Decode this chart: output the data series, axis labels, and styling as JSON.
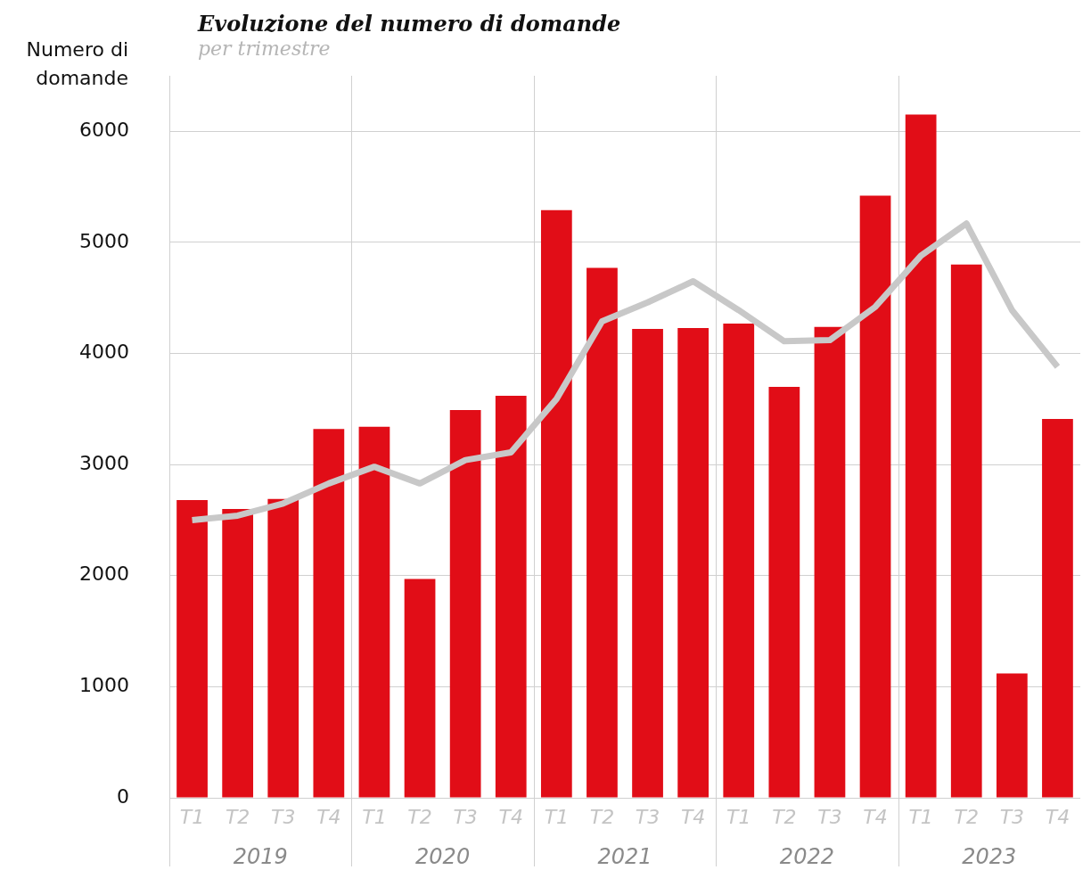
{
  "chart_data": {
    "type": "bar",
    "title": "Evoluzione del numero di domande",
    "subtitle": "per trimestre",
    "ylabel": "Numero di domande",
    "categories": [
      "T1",
      "T2",
      "T3",
      "T4",
      "T1",
      "T2",
      "T3",
      "T4",
      "T1",
      "T2",
      "T3",
      "T4",
      "T1",
      "T2",
      "T3",
      "T4",
      "T1",
      "T2",
      "T3",
      "T4"
    ],
    "series": [
      {
        "color": "#e10d17",
        "values": [
          2680,
          2600,
          2690,
          3320,
          3340,
          1970,
          3490,
          3620,
          5290,
          4770,
          4220,
          4230,
          4270,
          3700,
          4240,
          5420,
          6150,
          4800,
          1120,
          3410
        ]
      },
      {
        "type": "line",
        "color": "#c8c8c8",
        "values": [
          2500,
          2540,
          2650,
          2830,
          2980,
          2830,
          3040,
          3110,
          3590,
          4290,
          4460,
          4650,
          4390,
          4110,
          4120,
          4420,
          4880,
          5170,
          4390,
          3880
        ]
      }
    ],
    "ylim": [
      0,
      6500
    ],
    "yticks": [
      0,
      1000,
      2000,
      3000,
      4000,
      5000,
      6000
    ],
    "grid": "y",
    "annotations": [
      "2019",
      "2020",
      "2021",
      "2022",
      "2023"
    ]
  }
}
